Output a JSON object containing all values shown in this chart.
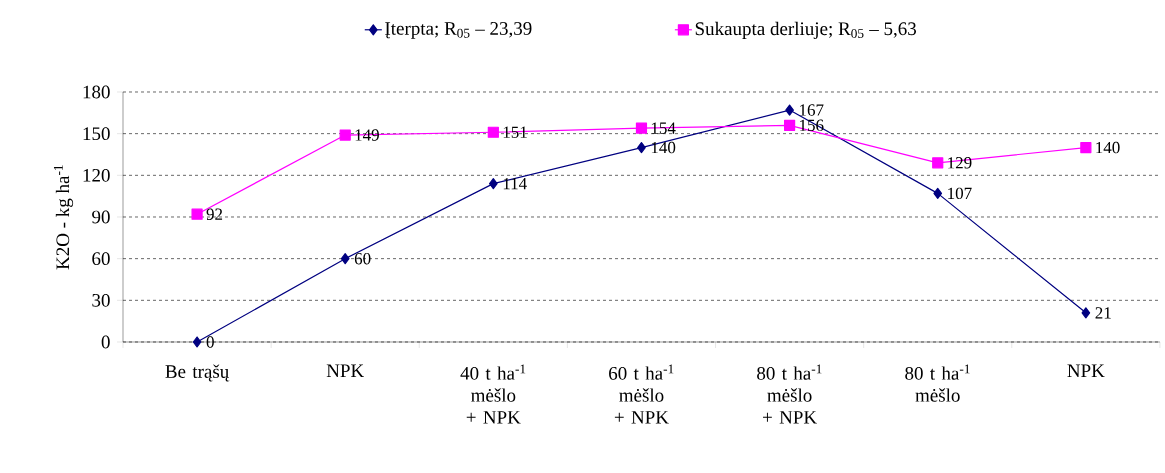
{
  "chart_data": {
    "type": "line",
    "ylabel": "K2O - kg ha$^{-1}$",
    "categories": [
      "Be trąšų",
      "NPK",
      "40 t ha$^{-1}$ mėšlo + NPK",
      "60 t ha$^{-1}$ mėšlo + NPK",
      "80 t ha$^{-1}$ mėšlo + NPK",
      "80 t ha$^{-1}$ mėšlo",
      "NPK"
    ],
    "series": [
      {
        "name": "Įterpta; R$_{05}$ – 23,39",
        "color": "#000080",
        "marker": "diamond",
        "values": [
          0,
          60,
          114,
          140,
          167,
          107,
          21
        ]
      },
      {
        "name": "Sukaupta derliuje; R$_{05}$ – 5,63",
        "color": "#ff00ff",
        "marker": "square",
        "values": [
          92,
          149,
          151,
          154,
          156,
          129,
          140
        ]
      }
    ],
    "ylim": [
      0,
      180
    ],
    "yticks": [
      0,
      30,
      60,
      90,
      120,
      150,
      180
    ],
    "grid": "y",
    "legend": "top",
    "data_labels": true,
    "line_style": "solid"
  }
}
